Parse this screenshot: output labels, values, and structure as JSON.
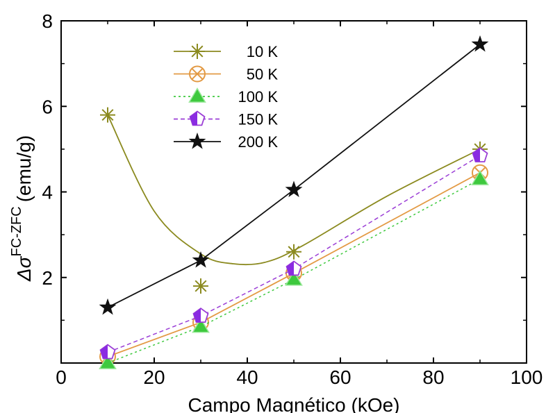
{
  "chart_data": {
    "type": "line",
    "title": "",
    "xlabel": "Campo Magnético (kOe)",
    "ylabel_main": "Δσ",
    "ylabel_super": "FC-ZFC",
    "ylabel_unit": "(emu/g)",
    "xlim": [
      0,
      100
    ],
    "ylim": [
      0,
      8
    ],
    "x_ticks": [
      0,
      20,
      40,
      60,
      80,
      100
    ],
    "y_ticks": [
      2,
      4,
      6,
      8
    ],
    "grid": false,
    "legend_position": "top-left",
    "series": [
      {
        "name": "10 K",
        "marker": "asterisk",
        "color": "#8b8a1f",
        "dash": "solid",
        "fill": "none",
        "x": [
          10,
          30,
          50,
          90
        ],
        "y": [
          5.8,
          1.8,
          2.6,
          5.0
        ],
        "curve": [
          [
            10,
            5.8
          ],
          [
            20,
            3.55
          ],
          [
            30,
            2.55
          ],
          [
            37,
            2.32
          ],
          [
            44,
            2.36
          ],
          [
            52,
            2.75
          ],
          [
            70,
            3.9
          ],
          [
            90,
            5.0
          ]
        ]
      },
      {
        "name": "50 K",
        "marker": "crossed-circle",
        "color": "#e39a44",
        "dash": "solid",
        "fill": "none",
        "x": [
          10,
          30,
          50,
          90
        ],
        "y": [
          0.15,
          0.95,
          2.1,
          4.45
        ]
      },
      {
        "name": "100 K",
        "marker": "triangle",
        "color": "#3ec93e",
        "dash": "dotted",
        "fill": "#3ec93e",
        "x": [
          10,
          30,
          50,
          90
        ],
        "y": [
          0.0,
          0.85,
          1.95,
          4.3
        ]
      },
      {
        "name": "150 K",
        "marker": "pentagon-half",
        "color": "#9b3ed6",
        "dash": "dashed",
        "fill": "#8a2be2",
        "x": [
          10,
          30,
          50,
          90
        ],
        "y": [
          0.25,
          1.1,
          2.2,
          4.85
        ]
      },
      {
        "name": "200 K",
        "marker": "star",
        "color": "#111111",
        "dash": "solid",
        "fill": "#111111",
        "x": [
          10,
          30,
          50,
          90
        ],
        "y": [
          1.3,
          2.4,
          4.05,
          7.45
        ]
      }
    ]
  }
}
